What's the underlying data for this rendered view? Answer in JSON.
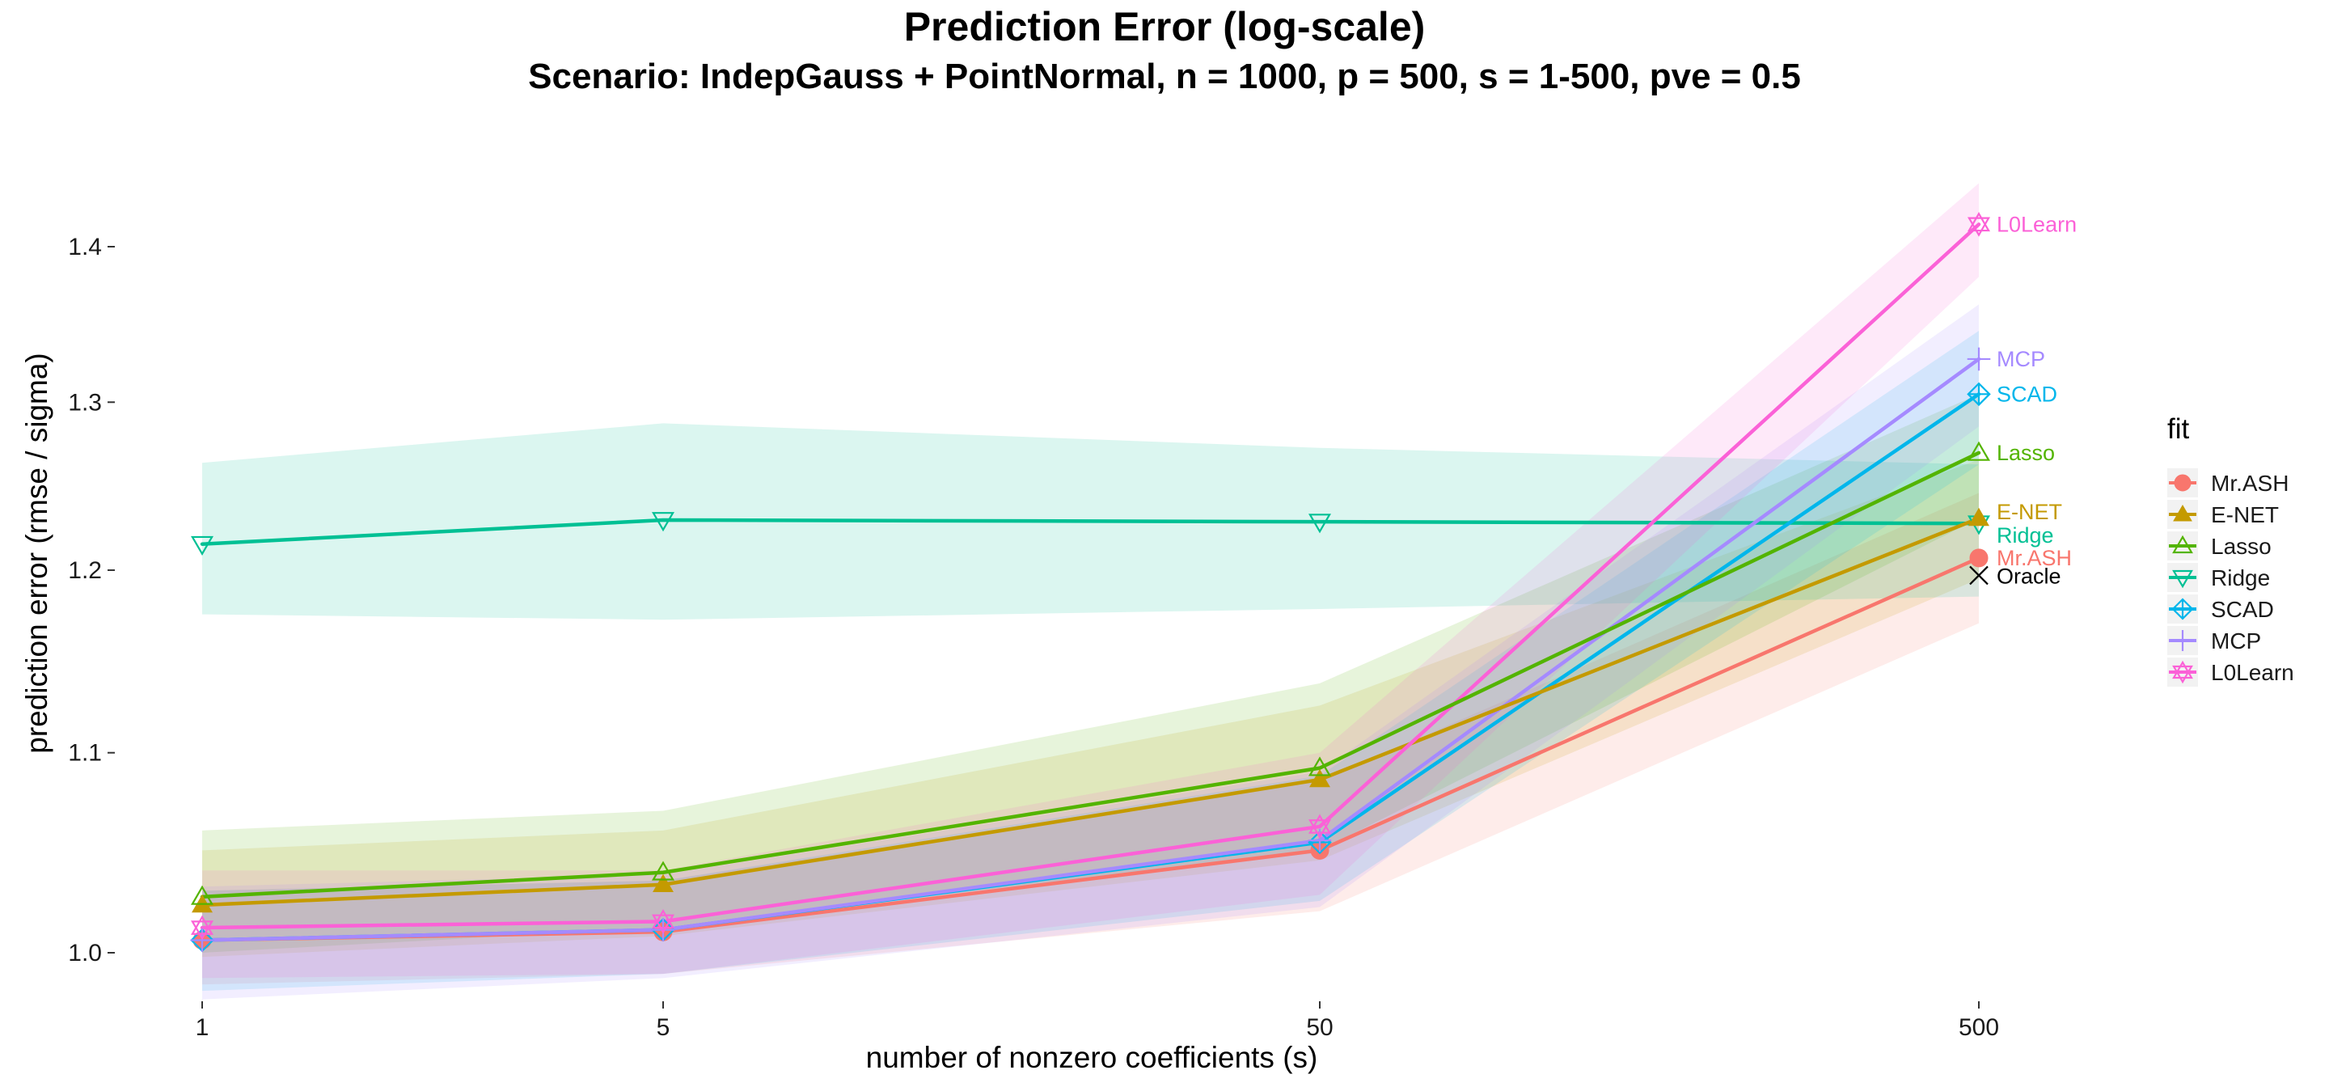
{
  "chart_data": {
    "type": "line",
    "title": "Prediction Error (log-scale)",
    "subtitle": "Scenario: IndepGauss + PointNormal, n = 1000, p = 500, s = 1-500, pve = 0.5",
    "xlabel": "number of nonzero coefficients (s)",
    "ylabel": "prediction error (rmse / sigma)",
    "x_scale": "log",
    "x": [
      1,
      5,
      50,
      500
    ],
    "x_tick_labels": [
      "1",
      "5",
      "50",
      "500"
    ],
    "y_scale": "log",
    "ylim": [
      0.965,
      1.47
    ],
    "y_ticks": [
      1.0,
      1.1,
      1.2,
      1.3,
      1.4
    ],
    "y_tick_labels": [
      "1.0",
      "1.1",
      "1.2",
      "1.3",
      "1.4"
    ],
    "grid": false,
    "legend_title": "fit",
    "legend_position": "right",
    "series": [
      {
        "name": "Mr.ASH",
        "end_label": "Mr.ASH",
        "color": "#F8766D",
        "marker": "circle",
        "values": [
          1.006,
          1.01,
          1.05,
          1.207
        ],
        "lower": [
          0.985,
          0.99,
          1.02,
          1.17
        ],
        "upper": [
          1.03,
          1.035,
          1.085,
          1.245
        ]
      },
      {
        "name": "E-NET",
        "end_label": "E-NET",
        "color": "#C49A00",
        "marker": "triangle-filled",
        "values": [
          1.023,
          1.033,
          1.086,
          1.23
        ],
        "lower": [
          0.998,
          1.008,
          1.045,
          1.195
        ],
        "upper": [
          1.05,
          1.06,
          1.125,
          1.265
        ]
      },
      {
        "name": "Lasso",
        "end_label": "Lasso",
        "color": "#53B400",
        "marker": "triangle-open",
        "values": [
          1.027,
          1.039,
          1.092,
          1.269
        ],
        "lower": [
          1.0,
          1.012,
          1.05,
          1.23
        ],
        "upper": [
          1.06,
          1.07,
          1.137,
          1.305
        ]
      },
      {
        "name": "Ridge",
        "end_label": "Ridge",
        "color": "#00C094",
        "marker": "triangle-down-open",
        "values": [
          1.215,
          1.229,
          1.228,
          1.227
        ],
        "lower": [
          1.175,
          1.172,
          1.178,
          1.185
        ],
        "upper": [
          1.263,
          1.287,
          1.272,
          1.262
        ]
      },
      {
        "name": "SCAD",
        "end_label": "SCAD",
        "color": "#00B6EB",
        "marker": "diamond-plus",
        "values": [
          1.006,
          1.011,
          1.054,
          1.305
        ],
        "lower": [
          0.982,
          0.99,
          1.025,
          1.262
        ],
        "upper": [
          1.03,
          1.035,
          1.088,
          1.345
        ]
      },
      {
        "name": "MCP",
        "end_label": "MCP",
        "color": "#A58AFF",
        "marker": "plus",
        "values": [
          1.006,
          1.011,
          1.055,
          1.327
        ],
        "lower": [
          0.978,
          0.988,
          1.022,
          1.285
        ],
        "upper": [
          1.032,
          1.038,
          1.09,
          1.362
        ]
      },
      {
        "name": "L0Learn",
        "end_label": "L0Learn",
        "color": "#FB61D7",
        "marker": "star",
        "values": [
          1.012,
          1.015,
          1.062,
          1.415
        ],
        "lower": [
          0.988,
          0.99,
          1.028,
          1.38
        ],
        "upper": [
          1.04,
          1.04,
          1.1,
          1.443
        ]
      }
    ],
    "oracle": {
      "label": "Oracle",
      "x": 500,
      "value": 1.197,
      "marker": "cross",
      "color": "#000000"
    }
  }
}
